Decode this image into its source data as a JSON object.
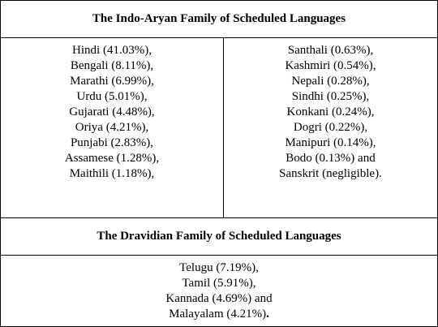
{
  "indo_aryan": {
    "title": "The Indo-Aryan Family of Scheduled Languages",
    "left_column": [
      "Hindi (41.03%),",
      "Bengali (8.11%),",
      "Marathi (6.99%),",
      "Urdu (5.01%),",
      "Gujarati (4.48%),",
      "Oriya (4.21%),",
      "Punjabi (2.83%),",
      "Assamese (1.28%),",
      "Maithili (1.18%),"
    ],
    "right_column": [
      "Santhali (0.63%),",
      "Kashmiri (0.54%),",
      "Nepali (0.28%),",
      "Sindhi (0.25%),",
      "Konkani (0.24%),",
      "Dogri (0.22%),",
      "Manipuri (0.14%),",
      "Bodo (0.13%) and",
      "Sanskrit (negligible)."
    ]
  },
  "dravidian": {
    "title": "The Dravidian Family of Scheduled Languages",
    "items": [
      "Telugu (7.19%),",
      "Tamil (5.91%),",
      "Kannada (4.69%) and",
      "Malayalam (4.21%)"
    ],
    "trailing_mark": "."
  }
}
